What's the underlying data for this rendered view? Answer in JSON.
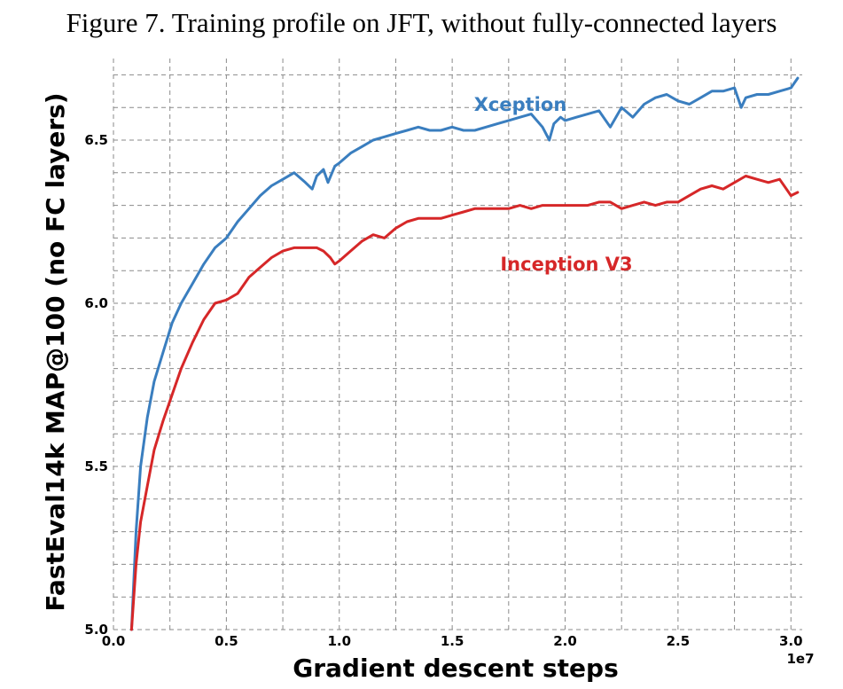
{
  "figure_title": "Figure 7. Training profile on JFT, without fully-connected layers",
  "chart_data": {
    "type": "line",
    "title": "Figure 7. Training profile on JFT, without fully-connected layers",
    "xlabel": "Gradient descent steps",
    "ylabel": "FastEval14k MAP@100 (no FC layers)",
    "x_scale_label": "1e7",
    "xlim": [
      0.0,
      3.05
    ],
    "ylim": [
      5.0,
      6.75
    ],
    "xticks": [
      0.0,
      0.5,
      1.0,
      1.5,
      2.0,
      2.5,
      3.0
    ],
    "xtick_labels": [
      "0.0",
      "0.5",
      "1.0",
      "1.5",
      "2.0",
      "2.5",
      "3.0"
    ],
    "yticks": [
      5.0,
      5.5,
      6.0,
      6.5
    ],
    "ytick_labels": [
      "5.0",
      "5.5",
      "6.0",
      "6.5"
    ],
    "minor_grid_step_x": 0.25,
    "minor_grid_step_y": 0.1,
    "grid": true,
    "series": [
      {
        "name": "Xception",
        "color": "#3a7ebf",
        "x": [
          0.08,
          0.1,
          0.12,
          0.15,
          0.18,
          0.22,
          0.26,
          0.3,
          0.35,
          0.4,
          0.45,
          0.5,
          0.55,
          0.6,
          0.65,
          0.7,
          0.75,
          0.8,
          0.85,
          0.88,
          0.9,
          0.93,
          0.95,
          0.98,
          1.0,
          1.05,
          1.1,
          1.15,
          1.2,
          1.25,
          1.3,
          1.35,
          1.4,
          1.45,
          1.5,
          1.55,
          1.6,
          1.65,
          1.7,
          1.75,
          1.8,
          1.85,
          1.9,
          1.93,
          1.95,
          1.98,
          2.0,
          2.05,
          2.1,
          2.15,
          2.2,
          2.25,
          2.3,
          2.35,
          2.4,
          2.45,
          2.5,
          2.55,
          2.6,
          2.65,
          2.7,
          2.75,
          2.78,
          2.8,
          2.85,
          2.9,
          2.95,
          3.0,
          3.03
        ],
        "values": [
          5.0,
          5.3,
          5.5,
          5.65,
          5.76,
          5.85,
          5.94,
          6.0,
          6.06,
          6.12,
          6.17,
          6.2,
          6.25,
          6.29,
          6.33,
          6.36,
          6.38,
          6.4,
          6.37,
          6.35,
          6.39,
          6.41,
          6.37,
          6.42,
          6.43,
          6.46,
          6.48,
          6.5,
          6.51,
          6.52,
          6.53,
          6.54,
          6.53,
          6.53,
          6.54,
          6.53,
          6.53,
          6.54,
          6.55,
          6.56,
          6.57,
          6.58,
          6.54,
          6.5,
          6.55,
          6.57,
          6.56,
          6.57,
          6.58,
          6.59,
          6.54,
          6.6,
          6.57,
          6.61,
          6.63,
          6.64,
          6.62,
          6.61,
          6.63,
          6.65,
          6.65,
          6.66,
          6.6,
          6.63,
          6.64,
          6.64,
          6.65,
          6.66,
          6.69
        ]
      },
      {
        "name": "Inception V3",
        "color": "#d62728",
        "x": [
          0.08,
          0.1,
          0.12,
          0.15,
          0.18,
          0.22,
          0.26,
          0.3,
          0.35,
          0.4,
          0.45,
          0.5,
          0.55,
          0.6,
          0.65,
          0.7,
          0.75,
          0.8,
          0.85,
          0.9,
          0.93,
          0.96,
          0.98,
          1.0,
          1.05,
          1.1,
          1.15,
          1.2,
          1.25,
          1.3,
          1.35,
          1.4,
          1.45,
          1.5,
          1.55,
          1.6,
          1.65,
          1.7,
          1.75,
          1.8,
          1.85,
          1.9,
          1.95,
          2.0,
          2.05,
          2.1,
          2.15,
          2.2,
          2.25,
          2.3,
          2.35,
          2.4,
          2.45,
          2.5,
          2.55,
          2.6,
          2.65,
          2.7,
          2.75,
          2.8,
          2.85,
          2.9,
          2.95,
          3.0,
          3.03
        ],
        "values": [
          5.0,
          5.2,
          5.33,
          5.44,
          5.55,
          5.64,
          5.72,
          5.8,
          5.88,
          5.95,
          6.0,
          6.01,
          6.03,
          6.08,
          6.11,
          6.14,
          6.16,
          6.17,
          6.17,
          6.17,
          6.16,
          6.14,
          6.12,
          6.13,
          6.16,
          6.19,
          6.21,
          6.2,
          6.23,
          6.25,
          6.26,
          6.26,
          6.26,
          6.27,
          6.28,
          6.29,
          6.29,
          6.29,
          6.29,
          6.3,
          6.29,
          6.3,
          6.3,
          6.3,
          6.3,
          6.3,
          6.31,
          6.31,
          6.29,
          6.3,
          6.31,
          6.3,
          6.31,
          6.31,
          6.33,
          6.35,
          6.36,
          6.35,
          6.37,
          6.39,
          6.38,
          6.37,
          6.38,
          6.33,
          6.34
        ]
      }
    ]
  }
}
